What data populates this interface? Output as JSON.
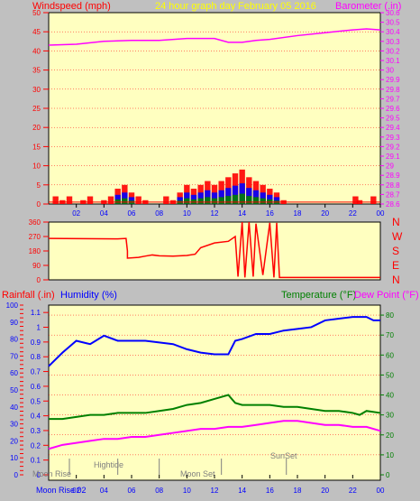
{
  "header": {
    "left_title": "Windspeed (mph)",
    "center_title": "24 hour graph day",
    "date": "February 05 2016",
    "right_title": "Barometer (.in)"
  },
  "bottom_header": {
    "rain": "Rainfall (.in)",
    "humidity": "Humidity (%)",
    "temperature": "Temperature (°F)",
    "dewpoint": "Dew Point (°F)"
  },
  "x_ticks": [
    "02",
    "04",
    "06",
    "08",
    "10",
    "12",
    "14",
    "16",
    "18",
    "20",
    "22",
    "00"
  ],
  "wind_yticks": [
    "0",
    "5",
    "10",
    "15",
    "20",
    "25",
    "30",
    "35",
    "40",
    "45",
    "50"
  ],
  "baro_yticks": [
    "28.6",
    "28.7",
    "28.8",
    "28.9",
    "29",
    "29.1",
    "29.2",
    "29.3",
    "29.4",
    "29.5",
    "29.6",
    "29.7",
    "29.8",
    "29.9",
    "30",
    "30.1",
    "30.2",
    "30.3",
    "30.4",
    "30.5",
    "30.6"
  ],
  "dir_yticks": [
    "0",
    "90",
    "180",
    "270",
    "360"
  ],
  "compass": [
    "N",
    "W",
    "S",
    "E",
    "N"
  ],
  "rain_yticks": [
    "0",
    "0.1",
    "0.2",
    "0.3",
    "0.4",
    "0.5",
    "0.6",
    "0.7",
    "0.8",
    "0.9",
    "1",
    "1.1"
  ],
  "hum_yticks": [
    "0",
    "10",
    "20",
    "30",
    "40",
    "50",
    "60",
    "70",
    "80",
    "90",
    "100"
  ],
  "temp_yticks": [
    "0",
    "10",
    "20",
    "30",
    "40",
    "50",
    "60",
    "70",
    "80"
  ],
  "events": {
    "moon_rise": "Moon Rise",
    "hightide": "Hightide",
    "moon_set": "Moon Set",
    "sunset": "SunSet",
    "bottom_label": "Moon Rise 02"
  },
  "colors": {
    "plot_bg": "#ffffc0",
    "frame_bg": "#c0c0c0",
    "wind": "#ff0000",
    "gust": "#0000ff",
    "wind_avg": "#008000",
    "barometer": "#ff00ff",
    "direction": "#ff0000",
    "humidity": "#0000ff",
    "temperature": "#008000",
    "dewpoint": "#ff00ff",
    "left_axis": "#ff0000",
    "right_axis_bottom": "#008000",
    "grid": "#ff0000"
  },
  "chart_data": [
    {
      "type": "bar",
      "name": "wind",
      "x_unit": "hour",
      "x_range": [
        0,
        24
      ],
      "ylim": [
        0,
        50
      ],
      "y2lim": [
        28.6,
        30.6
      ],
      "series": [
        {
          "name": "Windspeed (mph)",
          "points": [
            [
              0.5,
              2
            ],
            [
              1,
              1
            ],
            [
              1.5,
              2
            ],
            [
              2.5,
              1
            ],
            [
              3,
              2
            ],
            [
              4,
              1
            ],
            [
              4.5,
              2
            ],
            [
              5,
              4
            ],
            [
              5.5,
              5
            ],
            [
              6,
              3
            ],
            [
              6.5,
              2
            ],
            [
              7,
              1
            ],
            [
              8.5,
              2
            ],
            [
              9,
              1
            ],
            [
              9.5,
              3
            ],
            [
              10,
              5
            ],
            [
              10.5,
              4
            ],
            [
              11,
              5
            ],
            [
              11.5,
              6
            ],
            [
              12,
              5
            ],
            [
              12.5,
              6
            ],
            [
              13,
              7
            ],
            [
              13.5,
              8
            ],
            [
              14,
              9
            ],
            [
              14.5,
              7
            ],
            [
              15,
              6
            ],
            [
              15.5,
              5
            ],
            [
              16,
              4
            ],
            [
              16.5,
              3
            ],
            [
              17,
              1
            ],
            [
              22.2,
              2
            ],
            [
              22.5,
              1
            ],
            [
              23.5,
              2
            ]
          ]
        },
        {
          "name": "Barometer (.in)",
          "points": [
            [
              0,
              30.26
            ],
            [
              2,
              30.27
            ],
            [
              4,
              30.3
            ],
            [
              6,
              30.31
            ],
            [
              8,
              30.31
            ],
            [
              10,
              30.33
            ],
            [
              12,
              30.33
            ],
            [
              13,
              30.29
            ],
            [
              14,
              30.29
            ],
            [
              15,
              30.31
            ],
            [
              16,
              30.32
            ],
            [
              18,
              30.36
            ],
            [
              20,
              30.39
            ],
            [
              22,
              30.42
            ],
            [
              23,
              30.43
            ],
            [
              24,
              30.42
            ]
          ]
        }
      ]
    },
    {
      "type": "line",
      "name": "direction",
      "x_unit": "hour",
      "x_range": [
        0,
        24
      ],
      "ylim": [
        0,
        360
      ],
      "series": [
        {
          "name": "Wind Direction",
          "points": [
            [
              0,
              258
            ],
            [
              5,
              255
            ],
            [
              5.6,
              258
            ],
            [
              5.7,
              180
            ],
            [
              5.7,
              135
            ],
            [
              6.5,
              140
            ],
            [
              7,
              148
            ],
            [
              7.5,
              155
            ],
            [
              8,
              150
            ],
            [
              9,
              148
            ],
            [
              10,
              152
            ],
            [
              10.6,
              160
            ],
            [
              11,
              200
            ],
            [
              12,
              230
            ],
            [
              13,
              240
            ],
            [
              13.5,
              270
            ],
            [
              13.7,
              20
            ],
            [
              14,
              360
            ],
            [
              14.2,
              15
            ],
            [
              14.5,
              360
            ],
            [
              14.8,
              20
            ],
            [
              15,
              350
            ],
            [
              15.5,
              30
            ],
            [
              16,
              355
            ],
            [
              16.3,
              15
            ],
            [
              16.5,
              355
            ],
            [
              16.7,
              15
            ],
            [
              17,
              15
            ],
            [
              24,
              15
            ]
          ]
        }
      ]
    },
    {
      "type": "line",
      "name": "temperature",
      "x_unit": "hour",
      "x_range": [
        0,
        24
      ],
      "ylim": [
        0,
        85
      ],
      "y2lim_rain": [
        0,
        1.15
      ],
      "y2lim_humidity": [
        0,
        100
      ],
      "series": [
        {
          "name": "Humidity (%)",
          "points": [
            [
              0,
              64
            ],
            [
              1,
              72
            ],
            [
              2,
              79
            ],
            [
              3,
              77
            ],
            [
              4,
              82
            ],
            [
              5,
              79
            ],
            [
              6,
              79
            ],
            [
              7,
              79
            ],
            [
              8,
              78
            ],
            [
              9,
              77
            ],
            [
              10,
              74
            ],
            [
              11,
              72
            ],
            [
              12,
              71
            ],
            [
              13,
              71
            ],
            [
              13.5,
              79
            ],
            [
              14,
              80
            ],
            [
              15,
              83
            ],
            [
              16,
              83
            ],
            [
              17,
              85
            ],
            [
              18,
              86
            ],
            [
              19,
              87
            ],
            [
              20,
              91
            ],
            [
              21,
              92
            ],
            [
              22,
              93
            ],
            [
              23,
              93
            ],
            [
              23.5,
              91
            ],
            [
              24,
              91
            ]
          ]
        },
        {
          "name": "Temperature (°F)",
          "points": [
            [
              0,
              28
            ],
            [
              1,
              28
            ],
            [
              2,
              29
            ],
            [
              3,
              30
            ],
            [
              4,
              30
            ],
            [
              5,
              31
            ],
            [
              6,
              31
            ],
            [
              7,
              31
            ],
            [
              8,
              32
            ],
            [
              9,
              33
            ],
            [
              10,
              35
            ],
            [
              11,
              36
            ],
            [
              12,
              38
            ],
            [
              13,
              40
            ],
            [
              13.5,
              36
            ],
            [
              14,
              35
            ],
            [
              15,
              35
            ],
            [
              16,
              35
            ],
            [
              17,
              34
            ],
            [
              18,
              34
            ],
            [
              19,
              33
            ],
            [
              20,
              32
            ],
            [
              21,
              32
            ],
            [
              22,
              31
            ],
            [
              22.5,
              30
            ],
            [
              23,
              32
            ],
            [
              24,
              31
            ]
          ]
        },
        {
          "name": "Dew Point (°F)",
          "points": [
            [
              0,
              13
            ],
            [
              1,
              15
            ],
            [
              2,
              16
            ],
            [
              3,
              17
            ],
            [
              4,
              18
            ],
            [
              5,
              18
            ],
            [
              6,
              19
            ],
            [
              7,
              19
            ],
            [
              8,
              20
            ],
            [
              9,
              21
            ],
            [
              10,
              22
            ],
            [
              11,
              23
            ],
            [
              12,
              23
            ],
            [
              13,
              24
            ],
            [
              14,
              24
            ],
            [
              15,
              25
            ],
            [
              16,
              26
            ],
            [
              17,
              27
            ],
            [
              18,
              27
            ],
            [
              19,
              26
            ],
            [
              20,
              25
            ],
            [
              21,
              25
            ],
            [
              22,
              24
            ],
            [
              23,
              24
            ],
            [
              24,
              22
            ]
          ]
        }
      ]
    }
  ]
}
